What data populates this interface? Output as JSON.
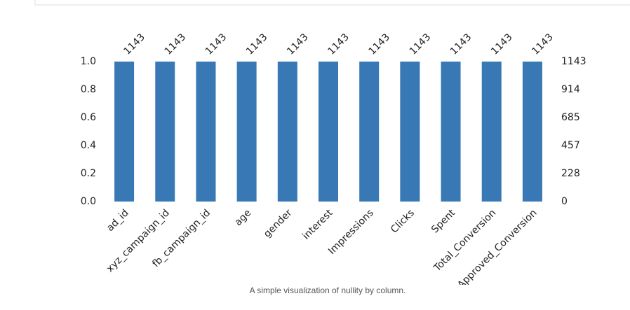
{
  "chart_data": {
    "type": "bar",
    "caption": "A simple visualization of nullity by column.",
    "categories": [
      "ad_id",
      "xyz_campaign_id",
      "fb_campaign_id",
      "age",
      "gender",
      "interest",
      "Impressions",
      "Clicks",
      "Spent",
      "Total_Conversion",
      "Approved_Conversion"
    ],
    "values": [
      1143,
      1143,
      1143,
      1143,
      1143,
      1143,
      1143,
      1143,
      1143,
      1143,
      1143
    ],
    "axis": "y2",
    "color": "#3778b5",
    "ylim": [
      0,
      1
    ],
    "yticks": [
      {
        "value": 0,
        "label": "0.0"
      },
      0.2,
      0.4,
      0.6,
      0.8,
      {
        "value": 1,
        "label": "1.0"
      }
    ],
    "y2lim": [
      0,
      1143
    ],
    "y2ticks": [
      0,
      228,
      457,
      685,
      914,
      1143
    ],
    "grid": false
  }
}
